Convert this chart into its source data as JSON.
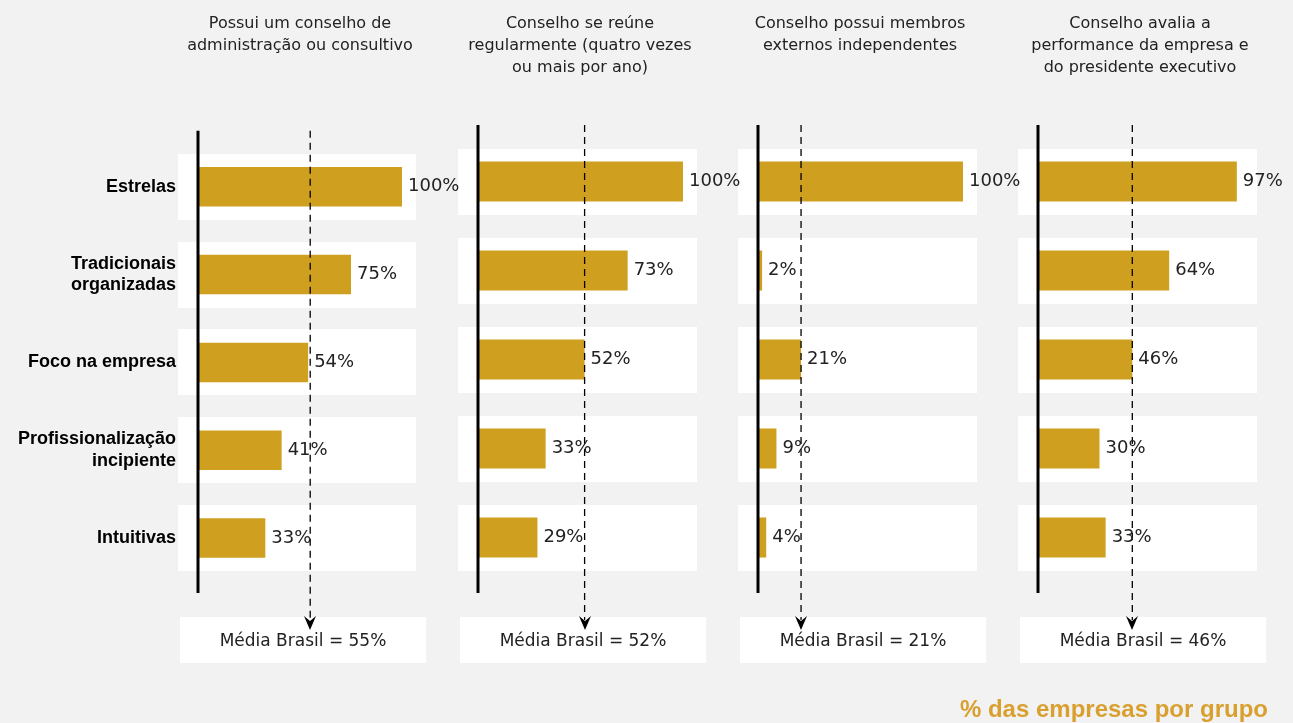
{
  "chart_data": [
    {
      "type": "bar",
      "orientation": "horizontal",
      "title": "Possui um conselho de administração ou consultivo",
      "categories": [
        "Estrelas",
        "Tradicionais organizadas",
        "Foco na empresa",
        "Profissionalização incipiente",
        "Intuitivas"
      ],
      "values": [
        100,
        75,
        54,
        41,
        33
      ],
      "value_labels": [
        "100%",
        "75%",
        "54%",
        "41%",
        "33%"
      ],
      "color": "#cf9f1f",
      "tick_labels": "y",
      "ref_lines": [
        {
          "axis": "x",
          "value": 55,
          "label": "Média Brasil = 55%"
        }
      ]
    },
    {
      "type": "bar",
      "orientation": "horizontal",
      "title": "Conselho se reúne regularmente (quatro vezes ou mais por ano)",
      "categories": [
        null,
        null,
        null,
        null,
        null
      ],
      "values": [
        100,
        73,
        52,
        33,
        29
      ],
      "value_labels": [
        "100%",
        "73%",
        "52%",
        "33%",
        "29%"
      ],
      "color": "#cf9f1f",
      "tick_labels": false,
      "ref_lines": [
        {
          "axis": "x",
          "value": 52,
          "label": "Média Brasil = 52%"
        }
      ]
    },
    {
      "type": "bar",
      "orientation": "horizontal",
      "title": "Conselho possui membros externos independentes",
      "categories": [
        null,
        null,
        null,
        null,
        null
      ],
      "values": [
        100,
        2,
        21,
        9,
        4
      ],
      "value_labels": [
        "100%",
        "2%",
        "21%",
        "9%",
        "4%"
      ],
      "color": "#cf9f1f",
      "tick_labels": false,
      "ref_lines": [
        {
          "axis": "x",
          "value": 21,
          "label": "Média Brasil = 21%"
        }
      ]
    },
    {
      "type": "bar",
      "orientation": "horizontal",
      "title": "Conselho avalia a performance da empresa e do presidente executivo",
      "categories": [
        null,
        null,
        null,
        null,
        null
      ],
      "values": [
        97,
        64,
        46,
        30,
        33
      ],
      "value_labels": [
        "97%",
        "64%",
        "46%",
        "30%",
        "33%"
      ],
      "color": "#cf9f1f",
      "tick_labels": false,
      "ref_lines": [
        {
          "axis": "x",
          "value": 46,
          "label": "Média Brasil = 46%"
        }
      ],
      "annotations": [
        "% das empresas por grupo"
      ]
    }
  ]
}
